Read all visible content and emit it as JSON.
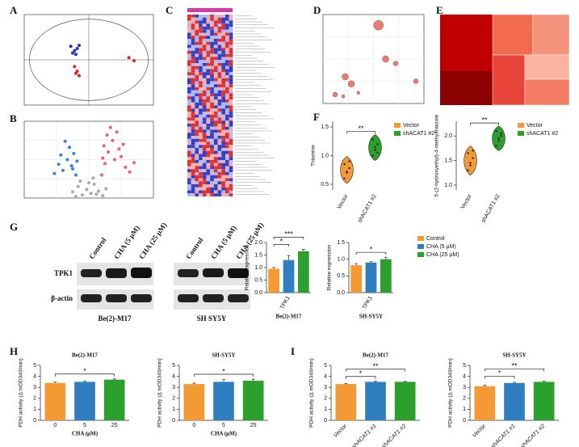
{
  "panel_labels": [
    "A",
    "B",
    "C",
    "D",
    "E",
    "F",
    "G",
    "H",
    "I"
  ],
  "blot": {
    "columns": [
      "Control",
      "CHA (5 μM)",
      "CHA (25 μM)",
      "Control",
      "CHA (5 μM)",
      "CHA (25 μM)"
    ],
    "rows": [
      "TPK1",
      "β-actin"
    ],
    "cells": [
      "Be(2)-M17",
      "SH SY5Y"
    ]
  },
  "chart_data": [
    {
      "type": "scatter",
      "xlim": [
        -1,
        1
      ],
      "ylim": [
        -1,
        1
      ],
      "series": [
        {
          "color": "#2233bb",
          "x": [
            -0.28,
            -0.22,
            -0.18,
            -0.25,
            -0.2,
            -0.15
          ],
          "values": [
            0.3,
            0.2,
            0.25,
            0.15,
            0.12,
            0.32
          ]
        },
        {
          "color": "#dd2222",
          "x": [
            -0.22,
            -0.2,
            -0.15,
            -0.18,
            0.62,
            0.7
          ],
          "values": [
            -0.15,
            -0.3,
            -0.35,
            -0.25,
            0.05,
            -0.02
          ]
        }
      ]
    },
    {
      "type": "scatter",
      "xlim": [
        -6,
        6
      ],
      "ylim": [
        0,
        10
      ],
      "series": [
        {
          "color": "#aaaaaa",
          "x": [
            -1.5,
            -1,
            -0.6,
            -0.2,
            0.2,
            0.5,
            0.9,
            1.3,
            -0.8,
            0.4,
            1.6,
            -1.2,
            0,
            0.7
          ],
          "values": [
            0.8,
            1.5,
            0.4,
            1.1,
            0.6,
            1.8,
            0.9,
            0.3,
            2.2,
            2.6,
            1.2,
            0.2,
            2,
            0.5
          ]
        },
        {
          "color": "#3b7fd9",
          "x": [
            -1.2,
            -1.6,
            -2,
            -2.4,
            -1.4,
            -1.8,
            -2.8,
            -1.1,
            -2.2,
            -3.2,
            -1.5,
            -2.6
          ],
          "values": [
            3,
            4.2,
            5,
            3.6,
            5.8,
            6.6,
            4.4,
            4.8,
            7.4,
            3.2,
            3.8,
            5.6
          ]
        },
        {
          "color": "#f06060",
          "x": [
            1.2,
            1.5,
            1.8,
            2.2,
            2.6,
            3,
            3.4,
            1.4,
            2,
            2.8,
            3.8,
            1.7,
            2.4,
            4.2,
            1.3,
            3.2
          ],
          "values": [
            3,
            4.5,
            6,
            7.5,
            8.6,
            5.4,
            4,
            6.8,
            9.2,
            6.4,
            3.4,
            8.2,
            5,
            4.6,
            5.2,
            7
          ]
        }
      ]
    },
    {
      "type": "scatter",
      "xlim": [
        0,
        1
      ],
      "ylim": [
        0,
        1
      ],
      "series": [
        {
          "color": "#e0504a",
          "x": [
            0.55,
            0.62,
            0.72,
            0.92,
            0.28,
            0.22,
            0.12,
            0.2,
            0.35
          ],
          "values": [
            0.88,
            0.5,
            0.45,
            0.25,
            0.22,
            0.3,
            0.1,
            0.08,
            0.12
          ],
          "sizes": [
            6,
            4,
            3,
            3,
            4,
            4,
            3,
            2,
            2
          ]
        }
      ]
    },
    {
      "type": "violin",
      "y_label": "Thiamine",
      "categories": [
        "Vector",
        "shACAT1 #2"
      ],
      "ylim": [
        0.4,
        1.6
      ],
      "yticks": [
        0.5,
        {
          "value": 1,
          "label": "1.0"
        },
        1.5
      ],
      "annotations": [
        "**"
      ],
      "legend": true,
      "series": [
        {
          "name": "Vector",
          "color": "#f39a35",
          "values": [
            0.6,
            0.7,
            0.78,
            0.85,
            0.72,
            0.9
          ]
        },
        {
          "name": "shACAT1 #2",
          "color": "#2ca02c",
          "values": [
            1.0,
            1.1,
            1.2,
            1.28,
            1.15,
            1.05
          ]
        }
      ]
    },
    {
      "type": "violin",
      "y_label": "5-(2-hydroxyethyl)-4-methylthiazole",
      "categories": [
        "Vector",
        "shACAT1 #2"
      ],
      "ylim": [
        0.9,
        2.3
      ],
      "yticks": [
        {
          "value": 1,
          "label": "1.0"
        },
        1.5,
        {
          "value": 2,
          "label": "2.0"
        }
      ],
      "annotations": [
        "**"
      ],
      "legend": true,
      "series": [
        {
          "name": "Vector",
          "color": "#f39a35",
          "values": [
            1.3,
            1.45,
            1.55,
            1.65,
            1.4,
            1.7
          ]
        },
        {
          "name": "shACAT1 #2",
          "color": "#2ca02c",
          "values": [
            1.8,
            1.95,
            2.05,
            2.1,
            1.9,
            2.0
          ]
        }
      ]
    },
    {
      "type": "bar",
      "y_label": "Relative expression",
      "x_label": "Be(2)-M17",
      "categories": [
        "TPK1"
      ],
      "ylim": [
        0,
        2
      ],
      "yticks": [
        {
          "value": 0,
          "label": "0.0"
        },
        {
          "value": 0.5,
          "label": "0.5"
        },
        {
          "value": 1,
          "label": "1.0"
        },
        {
          "value": 1.5,
          "label": "1.5"
        },
        {
          "value": 2,
          "label": "2.0"
        }
      ],
      "annotations": [
        "*",
        "***"
      ],
      "series": [
        {
          "color": "#f39a35",
          "values": [
            0.95
          ],
          "errors": [
            0.05
          ]
        },
        {
          "color": "#2f7ec0",
          "values": [
            1.3
          ],
          "errors": [
            0.18
          ]
        },
        {
          "color": "#2ca02c",
          "values": [
            1.65
          ],
          "errors": [
            0.08
          ]
        }
      ]
    },
    {
      "type": "bar",
      "y_label": "Relative expression",
      "x_label": "SH-SY5Y",
      "categories": [
        "TPK1"
      ],
      "ylim": [
        0,
        1.5
      ],
      "yticks": [
        {
          "value": 0,
          "label": "0.0"
        },
        {
          "value": 0.5,
          "label": "0.5"
        },
        {
          "value": 1,
          "label": "1.0"
        },
        {
          "value": 1.5,
          "label": "1.5"
        }
      ],
      "annotations": [
        "*"
      ],
      "legend": true,
      "series": [
        {
          "name": "Control",
          "color": "#f39a35",
          "values": [
            0.82
          ],
          "errors": [
            0.05
          ]
        },
        {
          "name": "CHA (5 μM)",
          "color": "#2f7ec0",
          "values": [
            0.9
          ],
          "errors": [
            0.03
          ]
        },
        {
          "name": "CHA (25 μM)",
          "color": "#2ca02c",
          "values": [
            1.0
          ],
          "errors": [
            0.06
          ]
        }
      ]
    },
    {
      "type": "bar",
      "title": "Be(2)-M17",
      "y_label": "PDH activity (Δ mOD340/min)",
      "x_label": "CHA (μM)",
      "categories": [
        "0",
        "5",
        "25"
      ],
      "ylim": [
        0,
        5
      ],
      "yticks": [
        0,
        1,
        2,
        3,
        4,
        5
      ],
      "annotations": [
        "*"
      ],
      "values": [
        3.4,
        3.5,
        3.7
      ],
      "errors": [
        0.08,
        0.08,
        0.07
      ],
      "colors": [
        "#f39a35",
        "#2f7ec0",
        "#2ca02c"
      ]
    },
    {
      "type": "bar",
      "title": "SH-SY5Y",
      "y_label": "PDH activity (Δ mOD340/min)",
      "x_label": "CHA (μM)",
      "categories": [
        "0",
        "5",
        "25"
      ],
      "ylim": [
        0,
        5
      ],
      "yticks": [
        0,
        1,
        2,
        3,
        4,
        5
      ],
      "annotations": [
        "*"
      ],
      "values": [
        3.3,
        3.5,
        3.6
      ],
      "errors": [
        0.08,
        0.2,
        0.15
      ],
      "colors": [
        "#f39a35",
        "#2f7ec0",
        "#2ca02c"
      ]
    },
    {
      "type": "bar",
      "title": "Be(2)-M17",
      "y_label": "PDH activity (Δ mOD340/min)",
      "categories": [
        "Vector",
        "shACAT1 #1",
        "shACAT1 #2"
      ],
      "ylim": [
        0,
        5
      ],
      "yticks": [
        0,
        1,
        2,
        3,
        4,
        5
      ],
      "annotations": [
        "*",
        "**"
      ],
      "values": [
        3.3,
        3.5,
        3.5
      ],
      "errors": [
        0.06,
        0.05,
        0.04
      ],
      "colors": [
        "#f39a35",
        "#2f7ec0",
        "#2ca02c"
      ]
    },
    {
      "type": "bar",
      "title": "SH-SY5Y",
      "y_label": "PDH activity (Δ mOD340/min)",
      "categories": [
        "Vector",
        "shACAT1 #1",
        "shACAT1 #2"
      ],
      "ylim": [
        0,
        5
      ],
      "yticks": [
        0,
        1,
        2,
        3,
        4,
        5
      ],
      "annotations": [
        "*",
        "**"
      ],
      "values": [
        3.1,
        3.4,
        3.5
      ],
      "errors": [
        0.1,
        0.06,
        0.08
      ],
      "colors": [
        "#f39a35",
        "#2f7ec0",
        "#2ca02c"
      ]
    }
  ]
}
